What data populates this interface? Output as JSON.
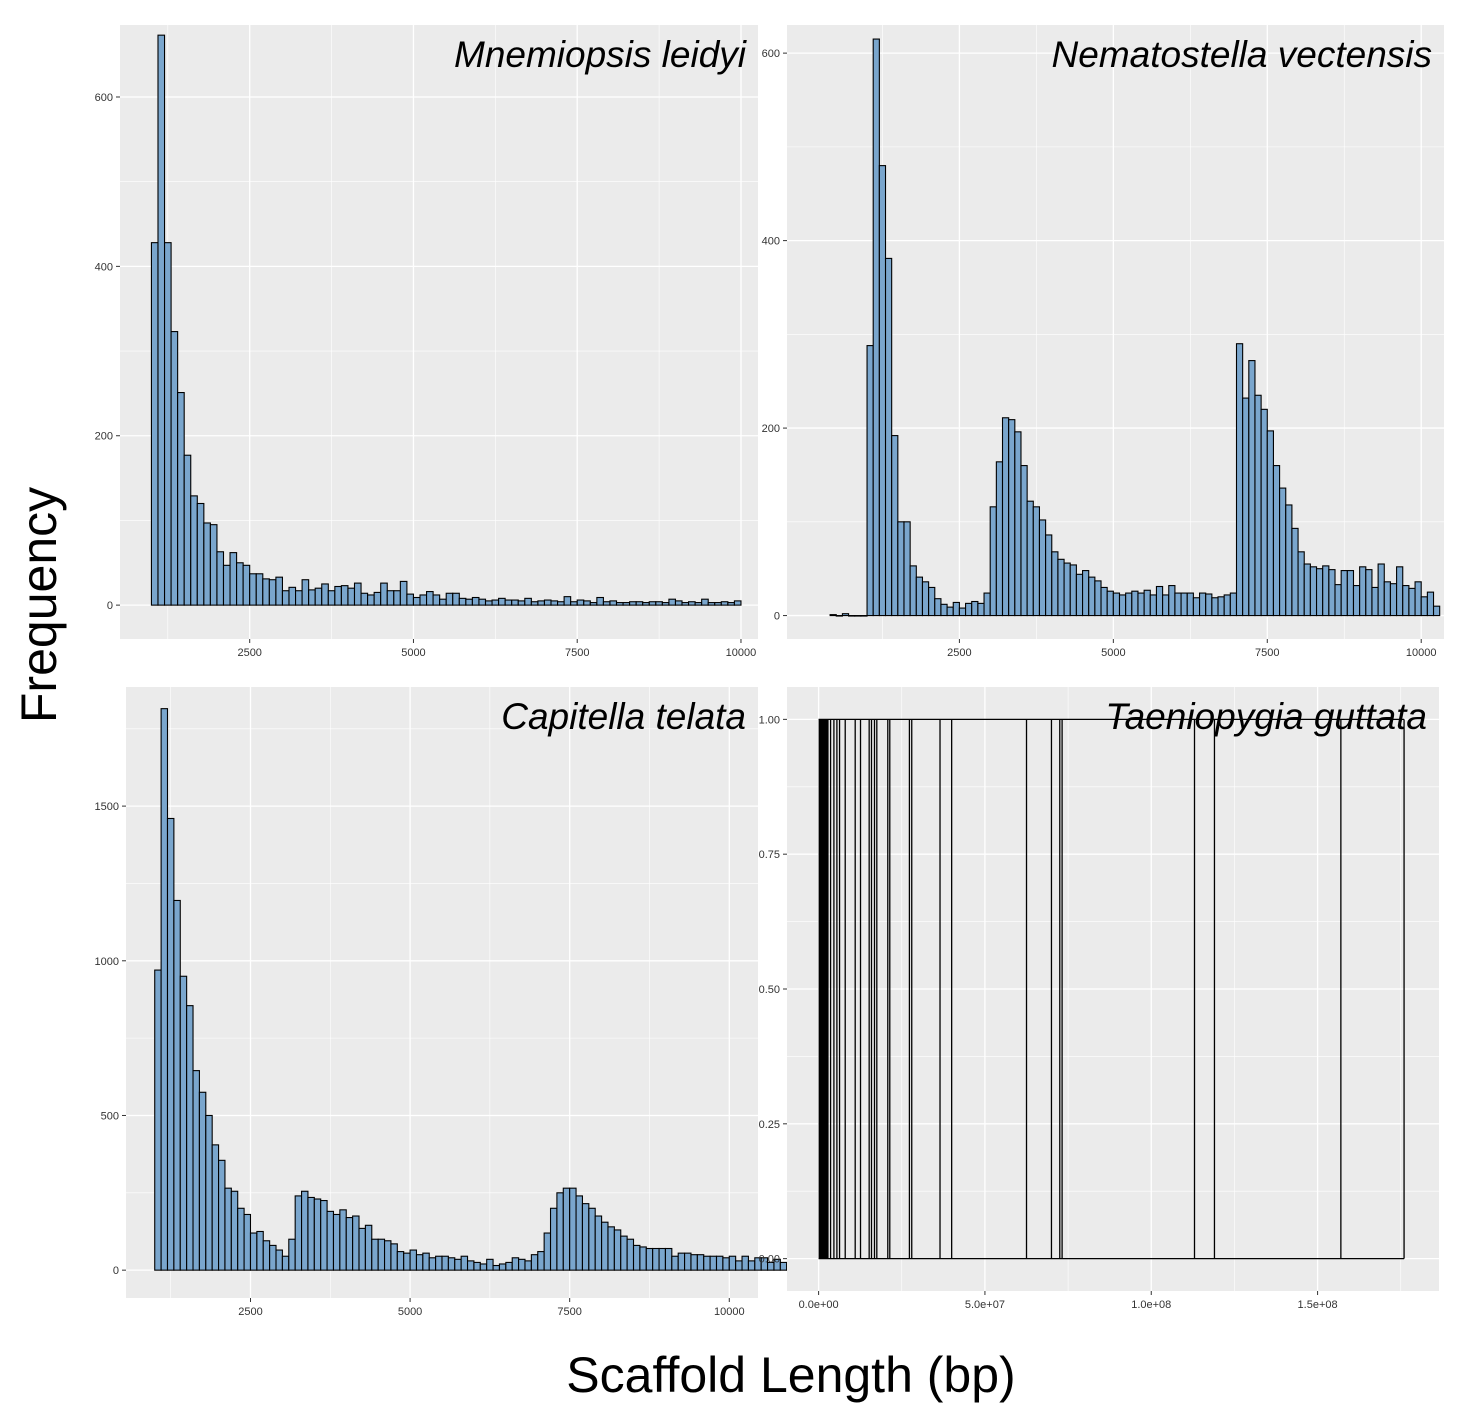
{
  "figure": {
    "xlabel": "Scaffold Length (bp)",
    "ylabel": "Frequency"
  },
  "colors": {
    "panel_background": "#ebebeb",
    "gridline": "#ffffff",
    "bar_fill": "#7aa6cd",
    "bar_outline": "#000000",
    "line_color": "#000000"
  },
  "chart_data": [
    {
      "type": "bar",
      "title": "Mnemiopsis leidyi",
      "xlabel": "",
      "ylabel": "",
      "grid": true,
      "xlim": [
        520,
        10260
      ],
      "ylim": [
        -40,
        685
      ],
      "x_ticks": [
        2500,
        5000,
        7500,
        10000
      ],
      "x_tick_labels": [
        "2500",
        "5000",
        "7500",
        "10000"
      ],
      "y_ticks": [
        0,
        200,
        400,
        600
      ],
      "y_tick_labels": [
        "0",
        "200",
        "400",
        "600"
      ],
      "bin_start": 1000,
      "bin_width": 100,
      "values": [
        428,
        673,
        428,
        323,
        251,
        177,
        129,
        120,
        97,
        95,
        63,
        47,
        62,
        50,
        47,
        37,
        37,
        31,
        30,
        33,
        17,
        21,
        17,
        30,
        18,
        20,
        25,
        17,
        22,
        23,
        20,
        26,
        14,
        12,
        15,
        26,
        17,
        17,
        28,
        13,
        9,
        12,
        16,
        12,
        7,
        14,
        14,
        8,
        7,
        9,
        7,
        5,
        6,
        8,
        6,
        6,
        5,
        8,
        4,
        5,
        6,
        5,
        4,
        10,
        4,
        6,
        5,
        3,
        9,
        4,
        5,
        3,
        3,
        4,
        4,
        3,
        4,
        4,
        3,
        7,
        5,
        3,
        4,
        3,
        7,
        3,
        3,
        4,
        3,
        5
      ]
    },
    {
      "type": "bar",
      "title": "Nematostella vectensis",
      "xlabel": "",
      "ylabel": "",
      "grid": true,
      "xlim": [
        -300,
        10370
      ],
      "ylim": [
        -25,
        630
      ],
      "x_ticks": [
        2500,
        5000,
        7500,
        10000
      ],
      "x_tick_labels": [
        "2500",
        "5000",
        "7500",
        "10000"
      ],
      "y_ticks": [
        0,
        200,
        400,
        600
      ],
      "y_tick_labels": [
        "0",
        "200",
        "400",
        "600"
      ],
      "bin_start": 400,
      "bin_width": 100,
      "values": [
        1,
        0,
        2,
        0,
        0,
        0,
        288,
        615,
        480,
        381,
        192,
        100,
        100,
        53,
        41,
        36,
        30,
        18,
        12,
        9,
        14,
        8,
        13,
        15,
        13,
        24,
        116,
        164,
        211,
        209,
        196,
        160,
        122,
        116,
        102,
        86,
        68,
        60,
        56,
        54,
        44,
        48,
        41,
        37,
        30,
        26,
        24,
        22,
        24,
        26,
        24,
        27,
        22,
        31,
        22,
        32,
        24,
        24,
        24,
        19,
        24,
        23,
        19,
        20,
        22,
        24,
        290,
        232,
        272,
        235,
        220,
        197,
        160,
        136,
        118,
        93,
        68,
        55,
        52,
        50,
        53,
        49,
        33,
        48,
        48,
        32,
        52,
        49,
        30,
        55,
        36,
        34,
        52,
        32,
        29,
        36,
        20,
        25,
        10
      ]
    },
    {
      "type": "bar",
      "title": "Capitella telata",
      "xlabel": "",
      "ylabel": "",
      "grid": true,
      "xlim": [
        550,
        10450
      ],
      "ylim": [
        -90,
        1885
      ],
      "x_ticks": [
        2500,
        5000,
        7500,
        10000
      ],
      "x_tick_labels": [
        "2500",
        "5000",
        "7500",
        "10000"
      ],
      "y_ticks": [
        0,
        500,
        1000,
        1500
      ],
      "y_tick_labels": [
        "0",
        "500",
        "1000",
        "1500"
      ],
      "bin_start": 1000,
      "bin_width": 100,
      "values": [
        970,
        1815,
        1460,
        1195,
        950,
        855,
        645,
        575,
        500,
        405,
        355,
        265,
        255,
        200,
        180,
        120,
        125,
        95,
        80,
        65,
        45,
        100,
        240,
        255,
        235,
        230,
        225,
        190,
        180,
        195,
        170,
        175,
        135,
        145,
        100,
        100,
        95,
        85,
        60,
        55,
        65,
        50,
        55,
        40,
        45,
        45,
        40,
        35,
        45,
        30,
        25,
        20,
        35,
        15,
        20,
        25,
        40,
        35,
        30,
        50,
        60,
        120,
        200,
        250,
        265,
        265,
        240,
        215,
        200,
        175,
        155,
        140,
        130,
        110,
        100,
        80,
        75,
        70,
        70,
        70,
        70,
        45,
        55,
        55,
        50,
        50,
        45,
        45,
        45,
        40,
        45,
        30,
        45,
        30,
        40,
        40,
        25,
        35,
        25,
        20
      ]
    },
    {
      "type": "bar",
      "title": "Taeniopygia guttata",
      "xlabel": "",
      "ylabel": "",
      "grid": true,
      "xlim": [
        -9500000,
        186500000
      ],
      "ylim": [
        -0.06,
        1.06
      ],
      "x_ticks": [
        0,
        50000000,
        100000000,
        150000000
      ],
      "x_tick_labels": [
        "0.0e+00",
        "5.0e+07",
        "1.0e+08",
        "1.5e+08"
      ],
      "y_ticks": [
        0,
        0.25,
        0.5,
        0.75,
        1.0
      ],
      "y_tick_labels": [
        "0.00",
        "0.25",
        "0.50",
        "0.75",
        "1.00"
      ],
      "dense_range": [
        0,
        3000000
      ],
      "x": [
        3600000,
        4600000,
        5500000,
        6300000,
        8000000,
        11000000,
        12600000,
        15200000,
        15900000,
        16800000,
        17500000,
        20800000,
        21400000,
        27300000,
        28000000,
        36500000,
        40000000,
        62500000,
        70000000,
        72500000,
        73200000,
        113000000,
        119000000,
        157000000,
        176000000
      ],
      "values": [
        1,
        1,
        1,
        1,
        1,
        1,
        1,
        1,
        1,
        1,
        1,
        1,
        1,
        1,
        1,
        1,
        1,
        1,
        1,
        1,
        1,
        1,
        1,
        1,
        1
      ]
    }
  ]
}
